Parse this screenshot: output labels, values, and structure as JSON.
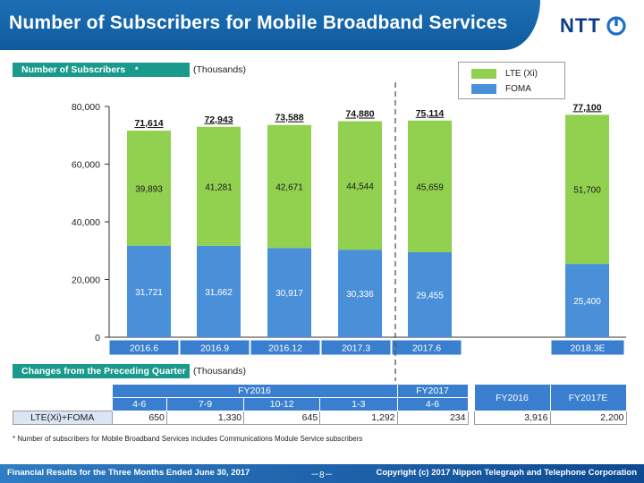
{
  "header": {
    "title": "Number of Subscribers for Mobile Broadband Services",
    "logo_text": "NTT"
  },
  "section1": {
    "tag": "Number of Subscribers",
    "tag_mark": "*",
    "unit": "(Thousands)"
  },
  "legend": {
    "items": [
      {
        "label": "LTE (Xi)",
        "color": "#92d050"
      },
      {
        "label": "FOMA",
        "color": "#4a90d9"
      }
    ]
  },
  "chart_data": {
    "type": "bar",
    "stacked": true,
    "categories": [
      "2016.6",
      "2016.9",
      "2016.12",
      "2017.3",
      "2017.6",
      "2018.3E"
    ],
    "series": [
      {
        "name": "FOMA",
        "values": [
          31721,
          31662,
          30917,
          30336,
          29455,
          25400
        ],
        "color": "#4a90d9"
      },
      {
        "name": "LTE (Xi)",
        "values": [
          39893,
          41281,
          42671,
          44544,
          45659,
          51700
        ],
        "color": "#92d050"
      }
    ],
    "totals": [
      71614,
      72943,
      73588,
      74880,
      75114,
      77100
    ],
    "value_labels": {
      "foma": [
        "31,721",
        "31,662",
        "30,917",
        "30,336",
        "29,455",
        "25,400"
      ],
      "lte": [
        "39,893",
        "41,281",
        "42,671",
        "44,544",
        "45,659",
        "51,700"
      ],
      "totals": [
        "71,614",
        "72,943",
        "73,588",
        "74,880",
        "75,114",
        "77,100"
      ]
    },
    "ylim": [
      0,
      80000
    ],
    "yticks": [
      0,
      20000,
      40000,
      60000,
      80000
    ],
    "ytick_labels": [
      "0",
      "20,000",
      "40,000",
      "60,000",
      "80,000"
    ],
    "grid": false
  },
  "section2": {
    "tag": "Changes from the Preceding Quarter",
    "unit": "(Thousands)",
    "fy2016": "FY2016",
    "fy2017": "FY2017",
    "quarters": [
      "4-6",
      "7-9",
      "10-12",
      "1-3",
      "4-6"
    ],
    "summary_headers": [
      "FY2016",
      "FY2017E"
    ],
    "row_label": "LTE(Xi)+FOMA",
    "values": [
      "650",
      "1,330",
      "645",
      "1,292",
      "234"
    ],
    "summary_values": [
      "3,916",
      "2,200"
    ]
  },
  "footnote": "* Number of subscribers for Mobile Broadband Services includes Communications Module Service subscribers",
  "footer": {
    "left": "Financial Results for the Three Months Ended June 30, 2017",
    "page": "－8－",
    "right": "Copyright (c) 2017 Nippon Telegraph and Telephone Corporation"
  }
}
